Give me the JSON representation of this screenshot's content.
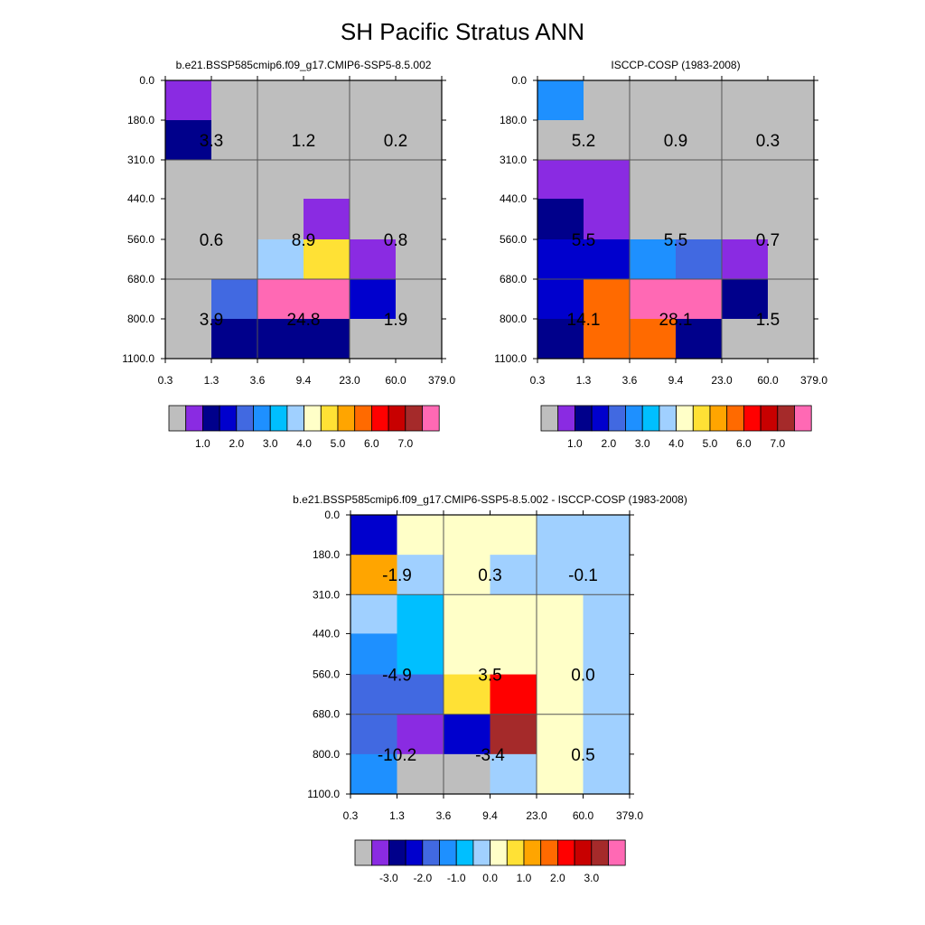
{
  "title": "SH Pacific Stratus ANN",
  "palette": {
    "ctl": [
      "#bebebe",
      "#8a2be2",
      "#00008b",
      "#0000cd",
      "#4169e1",
      "#1e90ff",
      "#00bfff",
      "#a0d0ff",
      "#ffffc8",
      "#ffe135",
      "#ffa500",
      "#ff6a00",
      "#ff0000",
      "#c80000",
      "#a52a2a",
      "#ff69b4"
    ],
    "diff": [
      "#bebebe",
      "#8a2be2",
      "#00008b",
      "#0000cd",
      "#4169e1",
      "#1e90ff",
      "#00bfff",
      "#a0d0ff",
      "#ffffc8",
      "#ffe135",
      "#ffa500",
      "#ff6a00",
      "#ff0000",
      "#c80000",
      "#a52a2a",
      "#ff69b4"
    ]
  },
  "chart_data": [
    {
      "type": "heatmap",
      "title": "b.e21.BSSP585cmip6.f09_g17.CMIP6-SSP5-8.5.002",
      "x_tick_labels": [
        "0.3",
        "1.3",
        "3.6",
        "9.4",
        "23.0",
        "60.0",
        "379.0"
      ],
      "y_tick_labels": [
        "0.0",
        "180.0",
        "310.0",
        "440.0",
        "560.0",
        "680.0",
        "800.0",
        "1100.0"
      ],
      "grid_x_boundaries": [
        "0.3",
        "3.6",
        "23.0",
        "379.0"
      ],
      "grid_y_boundaries": [
        "0.0",
        "310.0",
        "680.0",
        "1100.0"
      ],
      "cell_colors": [
        [
          1,
          0,
          0,
          0,
          0,
          0
        ],
        [
          2,
          0,
          0,
          0,
          0,
          0
        ],
        [
          0,
          0,
          0,
          0,
          0,
          0
        ],
        [
          0,
          0,
          0,
          1,
          0,
          0
        ],
        [
          0,
          0,
          7,
          9,
          1,
          0
        ],
        [
          0,
          4,
          15,
          15,
          3,
          0
        ],
        [
          0,
          2,
          2,
          2,
          0,
          0
        ]
      ],
      "box_values": [
        [
          "3.3",
          "1.2",
          "0.2"
        ],
        [
          "0.6",
          "8.9",
          "0.8"
        ],
        [
          "3.9",
          "24.8",
          "1.9"
        ]
      ],
      "colorbar": {
        "labels": [
          "1.0",
          "2.0",
          "3.0",
          "4.0",
          "5.0",
          "6.0",
          "7.0"
        ],
        "colors": "ctl"
      }
    },
    {
      "type": "heatmap",
      "title": "ISCCP-COSP (1983-2008)",
      "x_tick_labels": [
        "0.3",
        "1.3",
        "3.6",
        "9.4",
        "23.0",
        "60.0",
        "379.0"
      ],
      "y_tick_labels": [
        "0.0",
        "180.0",
        "310.0",
        "440.0",
        "560.0",
        "680.0",
        "800.0",
        "1100.0"
      ],
      "grid_x_boundaries": [
        "0.3",
        "3.6",
        "23.0",
        "379.0"
      ],
      "grid_y_boundaries": [
        "0.0",
        "310.0",
        "680.0",
        "1100.0"
      ],
      "cell_colors": [
        [
          5,
          0,
          0,
          0,
          0,
          0
        ],
        [
          0,
          0,
          0,
          0,
          0,
          0
        ],
        [
          1,
          1,
          0,
          0,
          0,
          0
        ],
        [
          2,
          1,
          0,
          0,
          0,
          0
        ],
        [
          3,
          3,
          5,
          4,
          1,
          0
        ],
        [
          3,
          11,
          15,
          15,
          2,
          0
        ],
        [
          2,
          11,
          11,
          2,
          0,
          0
        ]
      ],
      "box_values": [
        [
          "5.2",
          "0.9",
          "0.3"
        ],
        [
          "5.5",
          "5.5",
          "0.7"
        ],
        [
          "14.1",
          "28.1",
          "1.5"
        ]
      ],
      "colorbar": {
        "labels": [
          "1.0",
          "2.0",
          "3.0",
          "4.0",
          "5.0",
          "6.0",
          "7.0"
        ],
        "colors": "ctl"
      }
    },
    {
      "type": "heatmap",
      "title": "b.e21.BSSP585cmip6.f09_g17.CMIP6-SSP5-8.5.002 - ISCCP-COSP (1983-2008)",
      "x_tick_labels": [
        "0.3",
        "1.3",
        "3.6",
        "9.4",
        "23.0",
        "60.0",
        "379.0"
      ],
      "y_tick_labels": [
        "0.0",
        "180.0",
        "310.0",
        "440.0",
        "560.0",
        "680.0",
        "800.0",
        "1100.0"
      ],
      "grid_x_boundaries": [
        "0.3",
        "3.6",
        "23.0",
        "379.0"
      ],
      "grid_y_boundaries": [
        "0.0",
        "310.0",
        "680.0",
        "1100.0"
      ],
      "cell_colors": [
        [
          3,
          8,
          8,
          8,
          7,
          7
        ],
        [
          10,
          7,
          8,
          7,
          7,
          7
        ],
        [
          7,
          6,
          8,
          8,
          8,
          7
        ],
        [
          5,
          6,
          8,
          8,
          8,
          7
        ],
        [
          4,
          4,
          9,
          12,
          8,
          7
        ],
        [
          4,
          1,
          3,
          14,
          8,
          7
        ],
        [
          5,
          0,
          0,
          7,
          8,
          7
        ]
      ],
      "box_values": [
        [
          "-1.9",
          "0.3",
          "-0.1"
        ],
        [
          "-4.9",
          "3.5",
          "0.0"
        ],
        [
          "-10.2",
          "-3.4",
          "0.5"
        ]
      ],
      "colorbar": {
        "labels": [
          "-3.0",
          "-2.0",
          "-1.0",
          "0.0",
          "1.0",
          "2.0",
          "3.0"
        ],
        "colors": "diff"
      }
    }
  ]
}
